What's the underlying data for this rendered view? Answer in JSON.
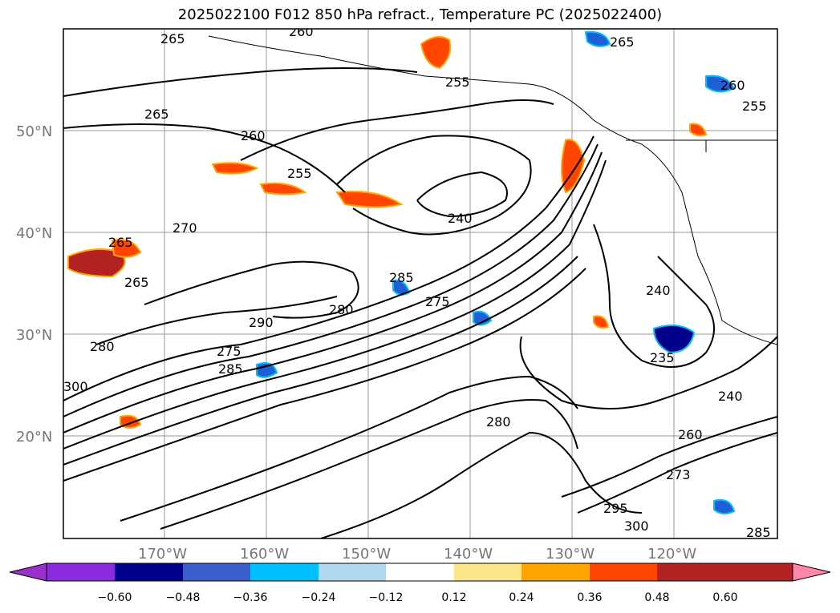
{
  "title": "2025022100 F012 850 hPa refract., Temperature PC (2025022400)",
  "map": {
    "lat_labels": [
      "50°N",
      "40°N",
      "30°N",
      "20°N"
    ],
    "lon_labels": [
      "170°W",
      "160°W",
      "150°W",
      "140°W",
      "130°W",
      "120°W"
    ],
    "contour_labels": [
      "265",
      "260",
      "265",
      "255",
      "260",
      "255",
      "265",
      "260",
      "255",
      "270",
      "265",
      "240",
      "265",
      "285",
      "275",
      "280",
      "290",
      "280",
      "275",
      "285",
      "300",
      "280",
      "240",
      "235",
      "240",
      "260",
      "285",
      "295",
      "300",
      "273"
    ],
    "colors": {
      "land_lines": "#000000",
      "contour": "#000000",
      "positive_anomaly": "#ff4500",
      "negative_anomaly": "#1f5fd6"
    }
  },
  "colorbar": {
    "ticks": [
      "−0.60",
      "−0.48",
      "−0.36",
      "−0.24",
      "−0.12",
      "0.12",
      "0.24",
      "0.36",
      "0.48",
      "0.60"
    ],
    "colors": [
      "#9932cc",
      "#8a2be2",
      "#00008b",
      "#3a5fcd",
      "#00bfff",
      "#add8f0",
      "#ffffff",
      "#fde68a",
      "#ffa500",
      "#ff4500",
      "#b22222",
      "#ff88aa"
    ]
  }
}
